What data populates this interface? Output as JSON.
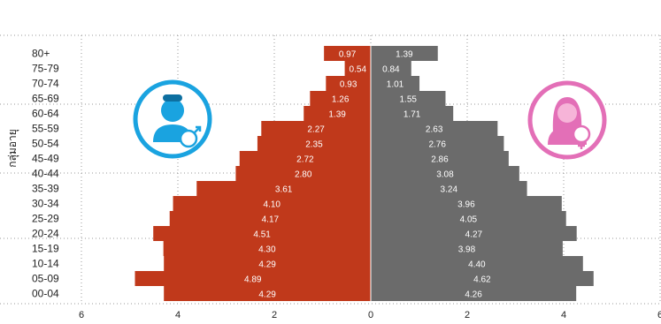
{
  "chart_data": {
    "type": "bar",
    "orientation": "horizontal",
    "layout": "population-pyramid",
    "ylabel": "กลุ่มอายุ",
    "categories": [
      "80+",
      "75-79",
      "70-74",
      "65-69",
      "60-64",
      "55-59",
      "50-54",
      "45-49",
      "40-44",
      "35-39",
      "30-34",
      "25-29",
      "20-24",
      "15-19",
      "10-14",
      "05-09",
      "00-04"
    ],
    "series": [
      {
        "values": [
          0.97,
          0.54,
          0.93,
          1.26,
          1.39,
          2.27,
          2.35,
          2.72,
          2.8,
          3.61,
          4.1,
          4.17,
          4.51,
          4.3,
          4.29,
          4.89,
          4.29
        ],
        "labels": [
          "0.97",
          "0.54",
          "0.93",
          "1.26",
          "1.39",
          "2.27",
          "2.35",
          "2.72",
          "2.80",
          "3.61",
          "4.10",
          "4.17",
          "4.51",
          "4.30",
          "4.29",
          "4.89",
          "4.29"
        ]
      },
      {
        "values": [
          1.39,
          0.84,
          1.01,
          1.55,
          1.71,
          2.63,
          2.76,
          2.86,
          3.08,
          3.24,
          3.96,
          4.05,
          4.27,
          3.98,
          4.4,
          4.62,
          4.26
        ],
        "labels": [
          "1.39",
          "0.84",
          "1.01",
          "1.55",
          "1.71",
          "2.63",
          "2.76",
          "2.86",
          "3.08",
          "3.24",
          "3.96",
          "4.05",
          "4.27",
          "3.98",
          "4.40",
          "4.62",
          "4.26"
        ]
      }
    ],
    "xlim": [
      -6,
      6
    ],
    "x_ticks": [
      -6,
      -4,
      -2,
      0,
      2,
      4,
      6
    ],
    "x_tick_labels": [
      "6",
      "4",
      "2",
      "0",
      "2",
      "4",
      "6"
    ],
    "grid": "dotted"
  },
  "colors": {
    "male": "#c0391b",
    "female": "#6b6b6b",
    "male_icon_ring": "#1aa3e0",
    "female_icon_ring": "#e36fb7"
  },
  "icons": {
    "male": "male-avatar-icon",
    "female": "female-avatar-icon"
  }
}
